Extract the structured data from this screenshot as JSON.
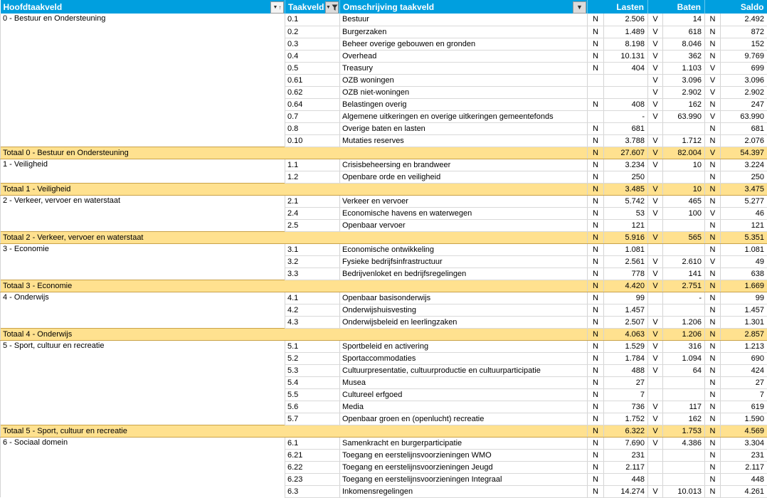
{
  "header": {
    "hoofdtaakveld": "Hoofdtaakveld",
    "taakveld": "Taakveld",
    "omschrijving": "Omschrijving taakveld",
    "lasten": "Lasten",
    "baten": "Baten",
    "saldo": "Saldo"
  },
  "icons": {
    "hoofdtaakveld_button": "sort-dropdown-icon",
    "taakveld_button": "funnel-filter-icon",
    "omschrijving_button": "chevron-down-icon"
  },
  "colors": {
    "header_bg": "#009FDF",
    "header_text": "#FFFFFF",
    "total_bg": "#FFE18F",
    "total_border": "#C9A24A",
    "gridline": "#D4D4D4"
  },
  "groups": [
    {
      "name": "0 - Bestuur en Ondersteuning",
      "rows": [
        {
          "code": "0.1",
          "desc": "Bestuur",
          "lasten_sign": "N",
          "lasten": "2.506",
          "baten_sign": "V",
          "baten": "14",
          "saldo_sign": "N",
          "saldo": "2.492"
        },
        {
          "code": "0.2",
          "desc": "Burgerzaken",
          "lasten_sign": "N",
          "lasten": "1.489",
          "baten_sign": "V",
          "baten": "618",
          "saldo_sign": "N",
          "saldo": "872"
        },
        {
          "code": "0.3",
          "desc": "Beheer overige gebouwen en gronden",
          "lasten_sign": "N",
          "lasten": "8.198",
          "baten_sign": "V",
          "baten": "8.046",
          "saldo_sign": "N",
          "saldo": "152"
        },
        {
          "code": "0.4",
          "desc": "Overhead",
          "lasten_sign": "N",
          "lasten": "10.131",
          "baten_sign": "V",
          "baten": "362",
          "saldo_sign": "N",
          "saldo": "9.769"
        },
        {
          "code": "0.5",
          "desc": "Treasury",
          "lasten_sign": "N",
          "lasten": "404",
          "baten_sign": "V",
          "baten": "1.103",
          "saldo_sign": "V",
          "saldo": "699"
        },
        {
          "code": "0.61",
          "desc": "OZB woningen",
          "lasten_sign": "",
          "lasten": "",
          "baten_sign": "V",
          "baten": "3.096",
          "saldo_sign": "V",
          "saldo": "3.096"
        },
        {
          "code": "0.62",
          "desc": "OZB niet-woningen",
          "lasten_sign": "",
          "lasten": "",
          "baten_sign": "V",
          "baten": "2.902",
          "saldo_sign": "V",
          "saldo": "2.902"
        },
        {
          "code": "0.64",
          "desc": "Belastingen overig",
          "lasten_sign": "N",
          "lasten": "408",
          "baten_sign": "V",
          "baten": "162",
          "saldo_sign": "N",
          "saldo": "247"
        },
        {
          "code": "0.7",
          "desc": "Algemene uitkeringen en overige uitkeringen gemeentefonds",
          "lasten_sign": "",
          "lasten": "-",
          "baten_sign": "V",
          "baten": "63.990",
          "saldo_sign": "V",
          "saldo": "63.990"
        },
        {
          "code": "0.8",
          "desc": "Overige baten en lasten",
          "lasten_sign": "N",
          "lasten": "681",
          "baten_sign": "",
          "baten": "",
          "saldo_sign": "N",
          "saldo": "681"
        },
        {
          "code": "0.10",
          "desc": "Mutaties reserves",
          "lasten_sign": "N",
          "lasten": "3.788",
          "baten_sign": "V",
          "baten": "1.712",
          "saldo_sign": "N",
          "saldo": "2.076"
        }
      ],
      "total": {
        "label": "Totaal 0 - Bestuur en Ondersteuning",
        "lasten_sign": "N",
        "lasten": "27.607",
        "baten_sign": "V",
        "baten": "82.004",
        "saldo_sign": "V",
        "saldo": "54.397"
      }
    },
    {
      "name": "1 - Veiligheid",
      "rows": [
        {
          "code": "1.1",
          "desc": "Crisisbeheersing en brandweer",
          "lasten_sign": "N",
          "lasten": "3.234",
          "baten_sign": "V",
          "baten": "10",
          "saldo_sign": "N",
          "saldo": "3.224"
        },
        {
          "code": "1.2",
          "desc": "Openbare orde en veiligheid",
          "lasten_sign": "N",
          "lasten": "250",
          "baten_sign": "",
          "baten": "",
          "saldo_sign": "N",
          "saldo": "250"
        }
      ],
      "total": {
        "label": "Totaal 1 - Veiligheid",
        "lasten_sign": "N",
        "lasten": "3.485",
        "baten_sign": "V",
        "baten": "10",
        "saldo_sign": "N",
        "saldo": "3.475"
      }
    },
    {
      "name": "2 - Verkeer, vervoer en waterstaat",
      "rows": [
        {
          "code": "2.1",
          "desc": "Verkeer en vervoer",
          "lasten_sign": "N",
          "lasten": "5.742",
          "baten_sign": "V",
          "baten": "465",
          "saldo_sign": "N",
          "saldo": "5.277"
        },
        {
          "code": "2.4",
          "desc": "Economische havens en waterwegen",
          "lasten_sign": "N",
          "lasten": "53",
          "baten_sign": "V",
          "baten": "100",
          "saldo_sign": "V",
          "saldo": "46"
        },
        {
          "code": "2.5",
          "desc": "Openbaar vervoer",
          "lasten_sign": "N",
          "lasten": "121",
          "baten_sign": "",
          "baten": "",
          "saldo_sign": "N",
          "saldo": "121"
        }
      ],
      "total": {
        "label": "Totaal 2 - Verkeer, vervoer en waterstaat",
        "lasten_sign": "N",
        "lasten": "5.916",
        "baten_sign": "V",
        "baten": "565",
        "saldo_sign": "N",
        "saldo": "5.351"
      }
    },
    {
      "name": "3 - Economie",
      "rows": [
        {
          "code": "3.1",
          "desc": "Economische ontwikkeling",
          "lasten_sign": "N",
          "lasten": "1.081",
          "baten_sign": "",
          "baten": "",
          "saldo_sign": "N",
          "saldo": "1.081"
        },
        {
          "code": "3.2",
          "desc": "Fysieke bedrijfsinfrastructuur",
          "lasten_sign": "N",
          "lasten": "2.561",
          "baten_sign": "V",
          "baten": "2.610",
          "saldo_sign": "V",
          "saldo": "49"
        },
        {
          "code": "3.3",
          "desc": "Bedrijvenloket en bedrijfsregelingen",
          "lasten_sign": "N",
          "lasten": "778",
          "baten_sign": "V",
          "baten": "141",
          "saldo_sign": "N",
          "saldo": "638"
        }
      ],
      "total": {
        "label": "Totaal 3 - Economie",
        "lasten_sign": "N",
        "lasten": "4.420",
        "baten_sign": "V",
        "baten": "2.751",
        "saldo_sign": "N",
        "saldo": "1.669"
      }
    },
    {
      "name": "4 - Onderwijs",
      "rows": [
        {
          "code": "4.1",
          "desc": "Openbaar basisonderwijs",
          "lasten_sign": "N",
          "lasten": "99",
          "baten_sign": "",
          "baten": "-",
          "saldo_sign": "N",
          "saldo": "99"
        },
        {
          "code": "4.2",
          "desc": "Onderwijshuisvesting",
          "lasten_sign": "N",
          "lasten": "1.457",
          "baten_sign": "",
          "baten": "",
          "saldo_sign": "N",
          "saldo": "1.457"
        },
        {
          "code": "4.3",
          "desc": "Onderwijsbeleid en leerlingzaken",
          "lasten_sign": "N",
          "lasten": "2.507",
          "baten_sign": "V",
          "baten": "1.206",
          "saldo_sign": "N",
          "saldo": "1.301"
        }
      ],
      "total": {
        "label": "Totaal 4 - Onderwijs",
        "lasten_sign": "N",
        "lasten": "4.063",
        "baten_sign": "V",
        "baten": "1.206",
        "saldo_sign": "N",
        "saldo": "2.857"
      }
    },
    {
      "name": "5 - Sport, cultuur en recreatie",
      "rows": [
        {
          "code": "5.1",
          "desc": "Sportbeleid en activering",
          "lasten_sign": "N",
          "lasten": "1.529",
          "baten_sign": "V",
          "baten": "316",
          "saldo_sign": "N",
          "saldo": "1.213"
        },
        {
          "code": "5.2",
          "desc": "Sportaccommodaties",
          "lasten_sign": "N",
          "lasten": "1.784",
          "baten_sign": "V",
          "baten": "1.094",
          "saldo_sign": "N",
          "saldo": "690"
        },
        {
          "code": "5.3",
          "desc": "Cultuurpresentatie, cultuurproductie en cultuurparticipatie",
          "lasten_sign": "N",
          "lasten": "488",
          "baten_sign": "V",
          "baten": "64",
          "saldo_sign": "N",
          "saldo": "424"
        },
        {
          "code": "5.4",
          "desc": "Musea",
          "lasten_sign": "N",
          "lasten": "27",
          "baten_sign": "",
          "baten": "",
          "saldo_sign": "N",
          "saldo": "27"
        },
        {
          "code": "5.5",
          "desc": "Cultureel erfgoed",
          "lasten_sign": "N",
          "lasten": "7",
          "baten_sign": "",
          "baten": "",
          "saldo_sign": "N",
          "saldo": "7"
        },
        {
          "code": "5.6",
          "desc": "Media",
          "lasten_sign": "N",
          "lasten": "736",
          "baten_sign": "V",
          "baten": "117",
          "saldo_sign": "N",
          "saldo": "619"
        },
        {
          "code": "5.7",
          "desc": "Openbaar groen en (openlucht) recreatie",
          "lasten_sign": "N",
          "lasten": "1.752",
          "baten_sign": "V",
          "baten": "162",
          "saldo_sign": "N",
          "saldo": "1.590"
        }
      ],
      "total": {
        "label": "Totaal 5 - Sport, cultuur en recreatie",
        "lasten_sign": "N",
        "lasten": "6.322",
        "baten_sign": "V",
        "baten": "1.753",
        "saldo_sign": "N",
        "saldo": "4.569"
      }
    },
    {
      "name": "6 - Sociaal domein",
      "rows": [
        {
          "code": "6.1",
          "desc": "Samenkracht en burgerparticipatie",
          "lasten_sign": "N",
          "lasten": "7.690",
          "baten_sign": "V",
          "baten": "4.386",
          "saldo_sign": "N",
          "saldo": "3.304"
        },
        {
          "code": "6.21",
          "desc": "Toegang en eerstelijnsvoorzieningen WMO",
          "lasten_sign": "N",
          "lasten": "231",
          "baten_sign": "",
          "baten": "",
          "saldo_sign": "N",
          "saldo": "231"
        },
        {
          "code": "6.22",
          "desc": "Toegang en eerstelijnsvoorzieningen Jeugd",
          "lasten_sign": "N",
          "lasten": "2.117",
          "baten_sign": "",
          "baten": "",
          "saldo_sign": "N",
          "saldo": "2.117"
        },
        {
          "code": "6.23",
          "desc": "Toegang en eerstelijnsvoorzieningen Integraal",
          "lasten_sign": "N",
          "lasten": "448",
          "baten_sign": "",
          "baten": "",
          "saldo_sign": "N",
          "saldo": "448"
        },
        {
          "code": "6.3",
          "desc": "Inkomensregelingen",
          "lasten_sign": "N",
          "lasten": "14.274",
          "baten_sign": "V",
          "baten": "10.013",
          "saldo_sign": "N",
          "saldo": "4.261"
        }
      ],
      "total": null
    }
  ]
}
